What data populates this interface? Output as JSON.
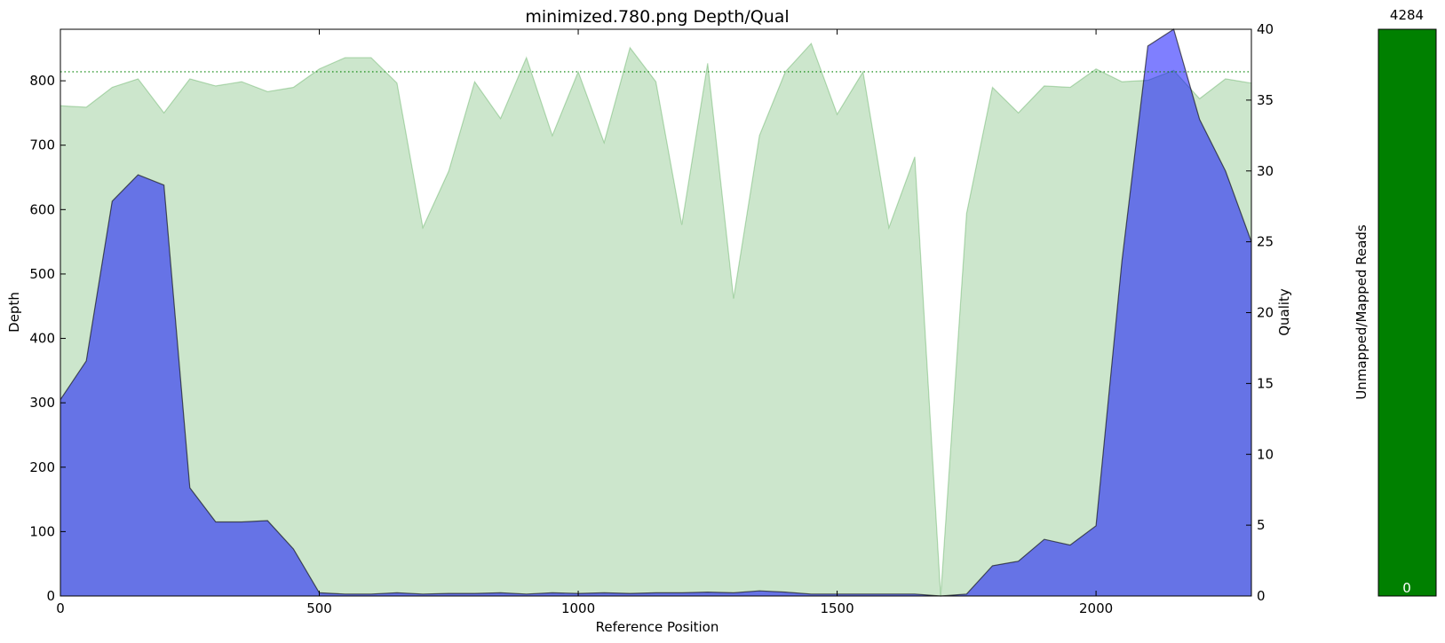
{
  "chart_data": [
    {
      "type": "area",
      "title": "minimized.780.png Depth/Qual",
      "xlabel": "Reference Position",
      "ylabel": "Depth",
      "y2label": "Quality",
      "xlim": [
        0,
        2300
      ],
      "ylim": [
        0,
        880
      ],
      "y2lim": [
        0,
        40
      ],
      "xticks": [
        0,
        500,
        1000,
        1500,
        2000
      ],
      "yticks": [
        0,
        100,
        200,
        300,
        400,
        500,
        600,
        700,
        800
      ],
      "y2ticks": [
        0,
        5,
        10,
        15,
        20,
        25,
        30,
        35,
        40
      ],
      "threshold_quality": 37,
      "colors": {
        "depth": "#0000ff",
        "quality": "#008000",
        "threshold": "#008000",
        "outline": "#000000"
      },
      "series": [
        {
          "name": "Depth",
          "axis": "left",
          "x": [
            0,
            50,
            100,
            150,
            200,
            250,
            300,
            350,
            400,
            450,
            500,
            550,
            600,
            650,
            700,
            750,
            800,
            850,
            900,
            950,
            1000,
            1050,
            1100,
            1150,
            1200,
            1250,
            1300,
            1350,
            1400,
            1450,
            1500,
            1550,
            1600,
            1650,
            1700,
            1750,
            1800,
            1850,
            1900,
            1950,
            2000,
            2050,
            2100,
            2150,
            2200,
            2250,
            2300
          ],
          "values": [
            305,
            365,
            613,
            654,
            638,
            168,
            115,
            115,
            117,
            73,
            5,
            3,
            3,
            5,
            3,
            4,
            4,
            5,
            3,
            5,
            4,
            5,
            4,
            5,
            5,
            6,
            5,
            8,
            6,
            3,
            3,
            3,
            3,
            3,
            0,
            3,
            47,
            54,
            88,
            79,
            109,
            520,
            854,
            880,
            740,
            660,
            550
          ]
        },
        {
          "name": "Quality",
          "axis": "right",
          "x": [
            0,
            50,
            100,
            150,
            200,
            250,
            300,
            350,
            400,
            450,
            500,
            550,
            600,
            650,
            700,
            750,
            800,
            850,
            900,
            950,
            1000,
            1050,
            1100,
            1150,
            1200,
            1250,
            1300,
            1350,
            1400,
            1450,
            1500,
            1550,
            1600,
            1650,
            1700,
            1750,
            1800,
            1850,
            1900,
            1950,
            2000,
            2050,
            2100,
            2150,
            2200,
            2250,
            2300
          ],
          "values": [
            34.6,
            34.5,
            35.9,
            36.5,
            34.1,
            36.5,
            36.0,
            36.3,
            35.6,
            35.9,
            37.2,
            38.0,
            38.0,
            36.2,
            26.0,
            30.0,
            36.3,
            33.7,
            38.0,
            32.5,
            37.0,
            32.0,
            38.7,
            36.3,
            26.2,
            37.6,
            21.0,
            32.5,
            37.0,
            39.0,
            34.0,
            37.0,
            26.0,
            31.0,
            0.0,
            27.0,
            35.9,
            34.1,
            36.0,
            35.9,
            37.2,
            36.3,
            36.4,
            37.1,
            35.1,
            36.5,
            36.2
          ]
        }
      ]
    },
    {
      "type": "bar",
      "ylabel": "Unmapped/Mapped Reads",
      "top_label": "4284",
      "bottom_label": "0",
      "values": [
        4284
      ],
      "ylim": [
        0,
        4284
      ],
      "colors": {
        "bar": "#008000"
      }
    }
  ]
}
